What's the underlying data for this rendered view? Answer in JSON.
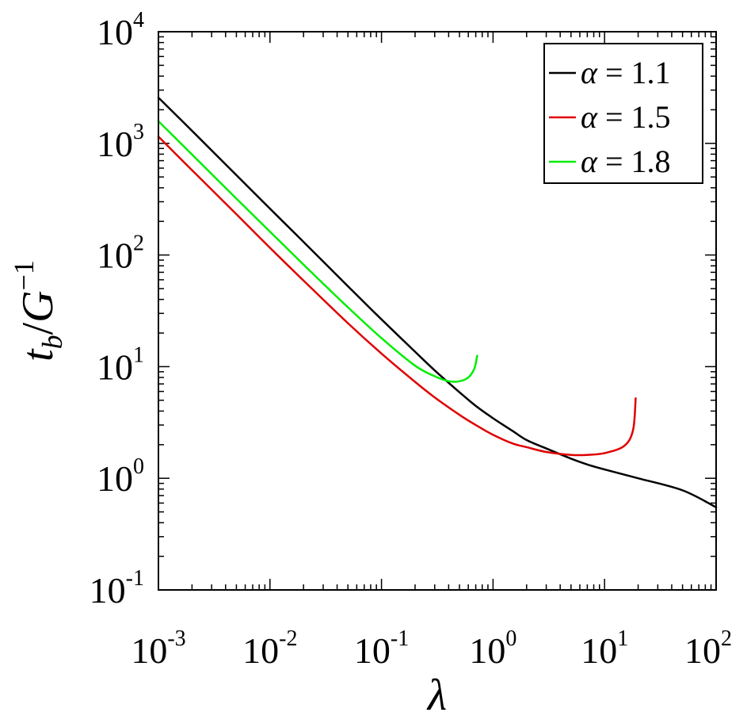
{
  "chart_data": {
    "type": "line",
    "xscale": "log",
    "yscale": "log",
    "xlim": [
      0.001,
      100
    ],
    "ylim": [
      0.1,
      10000
    ],
    "xticks": [
      {
        "base": "10",
        "exp": "-3"
      },
      {
        "base": "10",
        "exp": "-2"
      },
      {
        "base": "10",
        "exp": "-1"
      },
      {
        "base": "10",
        "exp": "0"
      },
      {
        "base": "10",
        "exp": "1"
      },
      {
        "base": "10",
        "exp": "2"
      }
    ],
    "yticks": [
      {
        "base": "10",
        "exp": "-1"
      },
      {
        "base": "10",
        "exp": "0"
      },
      {
        "base": "10",
        "exp": "1"
      },
      {
        "base": "10",
        "exp": "2"
      },
      {
        "base": "10",
        "exp": "3"
      },
      {
        "base": "10",
        "exp": "4"
      }
    ],
    "xlabel": "λ",
    "ylabel": {
      "main": "t",
      "sub": "b",
      "slash": "/",
      "den": "G",
      "sup": "−1"
    },
    "legend": {
      "position": "top-right"
    },
    "series": [
      {
        "name": "α = 1.1",
        "color": "#000000",
        "x": [
          0.001,
          0.002,
          0.005,
          0.01,
          0.02,
          0.05,
          0.1,
          0.2,
          0.3,
          0.5,
          0.7,
          1,
          1.5,
          2,
          3,
          5,
          7,
          10,
          20,
          50,
          100
        ],
        "y": [
          2570,
          1295,
          519,
          260,
          131,
          52.5,
          26.5,
          13.6,
          9.25,
          5.9,
          4.45,
          3.45,
          2.65,
          2.2,
          1.85,
          1.5,
          1.33,
          1.2,
          1.0,
          0.78,
          0.55
        ]
      },
      {
        "name": "α = 1.5",
        "color": "#e00000",
        "x": [
          0.001,
          0.002,
          0.005,
          0.01,
          0.02,
          0.05,
          0.1,
          0.2,
          0.3,
          0.5,
          0.7,
          1,
          1.5,
          2,
          3,
          5,
          7,
          10,
          15,
          18,
          19
        ],
        "y": [
          1150,
          575,
          232,
          116,
          59,
          24.5,
          13.1,
          7.3,
          5.3,
          3.7,
          3.0,
          2.45,
          2.05,
          1.9,
          1.72,
          1.62,
          1.62,
          1.68,
          1.95,
          2.7,
          5.2
        ]
      },
      {
        "name": "α = 1.8",
        "color": "#00ee00",
        "x": [
          0.001,
          0.002,
          0.005,
          0.01,
          0.02,
          0.05,
          0.1,
          0.2,
          0.3,
          0.4,
          0.5,
          0.6,
          0.68,
          0.72
        ],
        "y": [
          1580,
          795,
          320,
          162,
          82,
          34,
          18,
          10.2,
          8.2,
          7.4,
          7.4,
          8.0,
          9.6,
          12.5
        ]
      }
    ]
  }
}
